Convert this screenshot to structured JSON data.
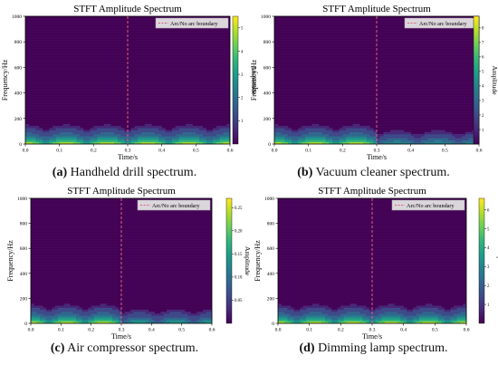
{
  "colors": {
    "viridis": [
      "#440154",
      "#482878",
      "#3e4a89",
      "#31688e",
      "#26828e",
      "#1f9e89",
      "#35b779",
      "#6ece58",
      "#b5de2b",
      "#fde725"
    ],
    "boundary": "#e0607a",
    "legend_bg": "#e8e8e8"
  },
  "chart_data": [
    {
      "id": "a",
      "type": "heatmap",
      "title": "STFT Amplitude Spectrum",
      "xlabel": "Time/s",
      "ylabel": "Frequency/Hz",
      "colorbar_label": "Amplitude",
      "x_ticks": [
        "0.0",
        "0.1",
        "0.2",
        "0.3",
        "0.4",
        "0.5",
        "0.6"
      ],
      "y_ticks": [
        "0",
        "200",
        "400",
        "600",
        "800",
        "1000"
      ],
      "cbar_ticks": [
        "1",
        "2",
        "3",
        "4",
        "5"
      ],
      "xlim": [
        0,
        0.6
      ],
      "ylim": [
        0,
        1000
      ],
      "clim": [
        0,
        5.5
      ],
      "boundary_x": 0.3,
      "legend": "Arc/No arc boundary",
      "legend_position": "top-right",
      "caption_letter": "(a)",
      "caption_text": " Handheld drill spectrum."
    },
    {
      "id": "b",
      "type": "heatmap",
      "title": "STFT Amplitude Spectrum",
      "xlabel": "Time/s",
      "ylabel": "Frequency/Hz",
      "colorbar_label": "Amplitude",
      "x_ticks": [
        "0.0",
        "0.1",
        "0.2",
        "0.3",
        "0.4",
        "0.5",
        "0.6"
      ],
      "y_ticks": [
        "0",
        "200",
        "400",
        "600",
        "800",
        "1000"
      ],
      "cbar_ticks": [
        "1",
        "2",
        "3",
        "4",
        "5",
        "6",
        "7",
        "8"
      ],
      "xlim": [
        0,
        0.6
      ],
      "ylim": [
        0,
        1000
      ],
      "clim": [
        0,
        8.8
      ],
      "boundary_x": 0.3,
      "legend": "Arc/No arc boundary",
      "legend_position": "top-right",
      "caption_letter": "(b)",
      "caption_text": " Vacuum cleaner spectrum."
    },
    {
      "id": "c",
      "type": "heatmap",
      "title": "STFT Amplitude Spectrum",
      "xlabel": "Time/s",
      "ylabel": "Frequency/Hz",
      "colorbar_label": "Amplitude",
      "x_ticks": [
        "0.0",
        "0.1",
        "0.2",
        "0.3",
        "0.4",
        "0.5",
        "0.6"
      ],
      "y_ticks": [
        "0",
        "200",
        "400",
        "600",
        "800",
        "1000"
      ],
      "cbar_ticks": [
        "0.05",
        "0.10",
        "0.15",
        "0.20",
        "0.25"
      ],
      "xlim": [
        0,
        0.6
      ],
      "ylim": [
        0,
        1000
      ],
      "clim": [
        0,
        0.27
      ],
      "boundary_x": 0.3,
      "legend": "Arc/No arc boundary",
      "legend_position": "top-right",
      "caption_letter": "(c)",
      "caption_text": " Air compressor spectrum."
    },
    {
      "id": "d",
      "type": "heatmap",
      "title": "STFT Amplitude Spectrum",
      "xlabel": "Time/s",
      "ylabel": "Frequency/Hz",
      "colorbar_label": "Amplitude",
      "x_ticks": [
        "0.0",
        "0.1",
        "0.2",
        "0.3",
        "0.4",
        "0.5",
        "0.6"
      ],
      "y_ticks": [
        "0",
        "200",
        "400",
        "600",
        "800",
        "1000"
      ],
      "cbar_ticks": [
        "1",
        "2",
        "3",
        "4",
        "5",
        "6"
      ],
      "xlim": [
        0,
        0.6
      ],
      "ylim": [
        0,
        1000
      ],
      "clim": [
        0,
        6.6
      ],
      "boundary_x": 0.3,
      "legend": "Arc/No arc boundary",
      "legend_position": "top-right",
      "caption_letter": "(d)",
      "caption_text": " Dimming lamp spectrum."
    }
  ]
}
